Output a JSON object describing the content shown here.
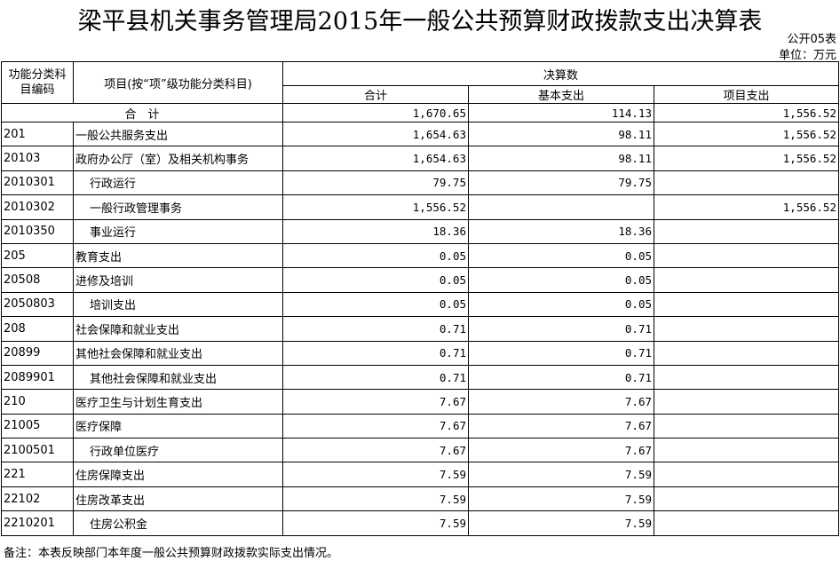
{
  "title": "梁平县机关事务管理局2015年一般公共预算财政拨款支出决算表",
  "form_no": "公开05表",
  "unit": "单位：万元",
  "headers": {
    "code": "功能分类科目编码",
    "item": "项目(按“项”级功能分类科目)",
    "group": "决算数",
    "total": "合计",
    "basic": "基本支出",
    "project": "项目支出"
  },
  "total_row": {
    "label": "合　计",
    "total": "1,670.65",
    "basic": "114.13",
    "project": "1,556.52"
  },
  "rows": [
    {
      "code": "201",
      "name": "一般公共服务支出",
      "total": "1,654.63",
      "basic": "98.11",
      "project": "1,556.52",
      "indent": false
    },
    {
      "code": "20103",
      "name": "政府办公厅（室）及相关机构事务",
      "total": "1,654.63",
      "basic": "98.11",
      "project": "1,556.52",
      "indent": false
    },
    {
      "code": "2010301",
      "name": "行政运行",
      "total": "79.75",
      "basic": "79.75",
      "project": "",
      "indent": true
    },
    {
      "code": "2010302",
      "name": "一般行政管理事务",
      "total": "1,556.52",
      "basic": "",
      "project": "1,556.52",
      "indent": true
    },
    {
      "code": "2010350",
      "name": "事业运行",
      "total": "18.36",
      "basic": "18.36",
      "project": "",
      "indent": true
    },
    {
      "code": "205",
      "name": "教育支出",
      "total": "0.05",
      "basic": "0.05",
      "project": "",
      "indent": false
    },
    {
      "code": "20508",
      "name": "进修及培训",
      "total": "0.05",
      "basic": "0.05",
      "project": "",
      "indent": false
    },
    {
      "code": "2050803",
      "name": "培训支出",
      "total": "0.05",
      "basic": "0.05",
      "project": "",
      "indent": true
    },
    {
      "code": "208",
      "name": "社会保障和就业支出",
      "total": "0.71",
      "basic": "0.71",
      "project": "",
      "indent": false
    },
    {
      "code": "20899",
      "name": "其他社会保障和就业支出",
      "total": "0.71",
      "basic": "0.71",
      "project": "",
      "indent": false
    },
    {
      "code": "2089901",
      "name": "其他社会保障和就业支出",
      "total": "0.71",
      "basic": "0.71",
      "project": "",
      "indent": true
    },
    {
      "code": "210",
      "name": "医疗卫生与计划生育支出",
      "total": "7.67",
      "basic": "7.67",
      "project": "",
      "indent": false
    },
    {
      "code": "21005",
      "name": "医疗保障",
      "total": "7.67",
      "basic": "7.67",
      "project": "",
      "indent": false
    },
    {
      "code": "2100501",
      "name": "行政单位医疗",
      "total": "7.67",
      "basic": "7.67",
      "project": "",
      "indent": true
    },
    {
      "code": "221",
      "name": "住房保障支出",
      "total": "7.59",
      "basic": "7.59",
      "project": "",
      "indent": false
    },
    {
      "code": "22102",
      "name": "住房改革支出",
      "total": "7.59",
      "basic": "7.59",
      "project": "",
      "indent": false
    },
    {
      "code": "2210201",
      "name": "住房公积金",
      "total": "7.59",
      "basic": "7.59",
      "project": "",
      "indent": true
    }
  ],
  "footnote": "备注：本表反映部门本年度一般公共预算财政拨款实际支出情况。"
}
